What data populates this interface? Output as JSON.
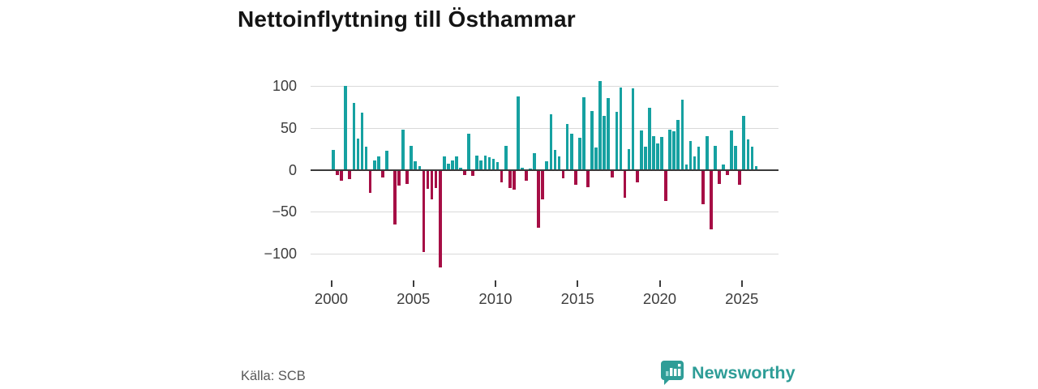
{
  "title": "Nettoinflyttning till Östhammar",
  "source_label": "Källa: SCB",
  "branding": {
    "logo_text": "Newsworthy",
    "logo_icon": "speech-bubble-bar-chart"
  },
  "colors": {
    "positive_bar": "#16a1a1",
    "negative_bar": "#a60e45",
    "gridline": "#d9d9d9",
    "zero_axis": "#3a3a3a",
    "axis_text": "#3d3d3d",
    "title_text": "#141414",
    "source_text": "#595959",
    "brand_teal": "#2e9d97"
  },
  "chart_data": {
    "type": "bar",
    "title": "Nettoinflyttning till Östhammar",
    "xlabel": "",
    "ylabel": "",
    "frequency": "quarterly",
    "start_year": 2000,
    "x_tick_labels": [
      "2000",
      "2005",
      "2010",
      "2015",
      "2020",
      "2025"
    ],
    "y_ticks": [
      100,
      50,
      0,
      -50,
      -100
    ],
    "y_tick_labels": [
      "100",
      "50",
      "0",
      "−50",
      "−100"
    ],
    "ylim": [
      -130,
      111
    ],
    "grid": "horizontal-only",
    "legend": "none",
    "series": [
      {
        "name": "Nettoinflyttning",
        "values": [
          24,
          -5,
          -12,
          100,
          -10,
          80,
          37,
          68,
          28,
          -26,
          11,
          16,
          -8,
          23,
          0,
          -64,
          -17,
          48,
          -15,
          29,
          10,
          4,
          -97,
          -21,
          -34,
          -20,
          -115,
          16,
          7,
          11,
          16,
          2,
          -5,
          43,
          -6,
          17,
          11,
          17,
          15,
          13,
          9,
          -14,
          29,
          -20,
          -22,
          88,
          2,
          -12,
          1,
          20,
          -68,
          -34,
          10,
          66,
          24,
          16,
          -9,
          55,
          43,
          -16,
          38,
          87,
          -19,
          70,
          27,
          106,
          64,
          86,
          -8,
          69,
          98,
          -32,
          25,
          97,
          -14,
          47,
          28,
          74,
          40,
          31,
          39,
          -36,
          48,
          46,
          59,
          84,
          6,
          34,
          16,
          28,
          -40,
          40,
          -70,
          29,
          -15,
          6,
          -5,
          47,
          29,
          -16,
          64,
          36,
          28,
          4
        ]
      }
    ]
  }
}
